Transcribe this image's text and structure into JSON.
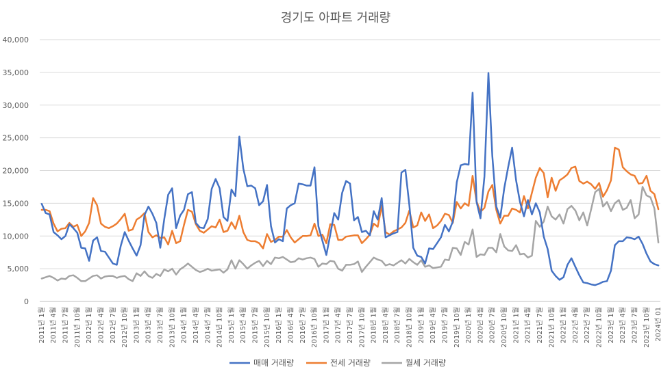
{
  "chart_data": {
    "type": "line",
    "title": "경기도 아파트 거래량",
    "xlabel": "",
    "ylabel": "",
    "ylim": [
      0,
      40000
    ],
    "yticks": [
      0,
      5000,
      10000,
      15000,
      20000,
      25000,
      30000,
      35000,
      40000
    ],
    "ytick_labels": [
      "0",
      "5,000",
      "10,000",
      "15,000",
      "20,000",
      "25,000",
      "30,000",
      "35,000",
      "40,000"
    ],
    "grid": "horizontal",
    "legend": "bottom",
    "xtick_labels": [
      "2011년 1월",
      "2011년 4월",
      "2011년 7월",
      "2011년 10월",
      "2012년 1월",
      "2012년 4월",
      "2012년 7월",
      "2012년 10월",
      "2013년 1월",
      "2013년 4월",
      "2013년 7월",
      "2013년 10월",
      "2014년 1월",
      "2014년 4월",
      "2014년 7월",
      "2014년 10월",
      "2015년 1월",
      "2015년 4월",
      "2015년 7월",
      "2015년 10월",
      "2016년 1월",
      "2016년 4월",
      "2016년 7월",
      "2016년 10월",
      "2017년 1월",
      "2017년 4월",
      "2017년 7월",
      "2017년 10월",
      "2018년 1월",
      "2018년 4월",
      "2018년 7월",
      "2018년 10월",
      "2019년 1월",
      "2019년 4월",
      "2019년 7월",
      "2019년 10월",
      "2020년 1월",
      "2020년 4월",
      "2020년 7월",
      "2020년 10월",
      "2021년 1월",
      "2021년 4월",
      "2021년 7월",
      "2021년 10월",
      "2022년 1월",
      "2022년 4월",
      "2022년 7월",
      "2022년 10월",
      "2023년 1월",
      "2023년 4월",
      "2023년 7월",
      "2023년 10월",
      "2024년 01"
    ],
    "series": [
      {
        "name": "매매 거래량",
        "color": "#4472C4",
        "values": [
          14900,
          13500,
          13300,
          10600,
          10100,
          9500,
          10000,
          11800,
          11200,
          10500,
          8200,
          8100,
          6200,
          9300,
          9800,
          7700,
          7600,
          6700,
          5800,
          5600,
          8500,
          10600,
          9300,
          8100,
          7000,
          8600,
          13200,
          14500,
          13400,
          12000,
          8200,
          12600,
          16300,
          17300,
          11200,
          13100,
          14000,
          16400,
          16700,
          12000,
          11300,
          11200,
          12600,
          17200,
          18700,
          17300,
          12900,
          12300,
          17100,
          16100,
          25200,
          20300,
          17600,
          17700,
          17300,
          14700,
          15300,
          17800,
          11500,
          9000,
          9500,
          9200,
          14200,
          14700,
          15000,
          18000,
          17900,
          17700,
          17700,
          20500,
          11500,
          9300,
          7100,
          10200,
          13500,
          12500,
          16600,
          18400,
          18000,
          12400,
          12900,
          10600,
          10800,
          10100,
          13800,
          12500,
          15800,
          9800,
          10100,
          10400,
          10600,
          19700,
          20100,
          14700,
          8200,
          7000,
          6800,
          5800,
          8100,
          8000,
          8900,
          9800,
          11700,
          10700,
          12200,
          18200,
          20800,
          21000,
          20900,
          31900,
          15200,
          12700,
          19100,
          34900,
          22200,
          14500,
          12800,
          17300,
          20500,
          23500,
          18500,
          15200,
          13000,
          15500,
          13300,
          15000,
          13600,
          9900,
          8000,
          4700,
          3900,
          3300,
          3700,
          5600,
          6600,
          5300,
          4000,
          2900,
          2800,
          2600,
          2500,
          2700,
          3000,
          3100,
          4700,
          8600,
          9200,
          9200,
          9800,
          9700,
          9500,
          9900,
          8800,
          7300,
          6100,
          5700,
          5500
        ]
      },
      {
        "name": "전세 거래량",
        "color": "#ED7D31",
        "values": [
          14000,
          14000,
          13800,
          11900,
          10700,
          11100,
          11200,
          12000,
          11400,
          11700,
          10000,
          10700,
          12000,
          15800,
          14700,
          11900,
          11400,
          11200,
          11500,
          11900,
          12600,
          13400,
          10800,
          11000,
          12500,
          12900,
          13500,
          10600,
          9800,
          10100,
          9700,
          9800,
          8700,
          10800,
          8900,
          9200,
          11700,
          14000,
          13700,
          11800,
          10800,
          10500,
          11000,
          11500,
          11300,
          12500,
          10600,
          10800,
          12100,
          11100,
          13100,
          10600,
          9400,
          9200,
          9200,
          8900,
          8100,
          10300,
          9100,
          9400,
          9900,
          9900,
          10900,
          9800,
          9000,
          9500,
          10000,
          10000,
          10100,
          11900,
          10000,
          10200,
          8900,
          11800,
          11700,
          9400,
          9400,
          9900,
          10000,
          10100,
          10100,
          8900,
          9500,
          10200,
          11900,
          11400,
          14600,
          10600,
          10200,
          10700,
          11000,
          11300,
          12000,
          13900,
          11300,
          11600,
          13600,
          12300,
          13300,
          11200,
          11600,
          12300,
          13400,
          13200,
          12000,
          15200,
          14200,
          15000,
          14600,
          19200,
          15300,
          13700,
          14300,
          16800,
          17800,
          14000,
          11900,
          13100,
          13100,
          14200,
          14000,
          13600,
          16100,
          14200,
          16600,
          18900,
          20400,
          19600,
          15900,
          18900,
          16900,
          18500,
          18900,
          19400,
          20400,
          20600,
          18400,
          18000,
          18300,
          17900,
          17200,
          18100,
          16000,
          17000,
          18500,
          23500,
          23200,
          20500,
          19900,
          19400,
          19200,
          18000,
          18100,
          19200,
          16900,
          16400,
          14100
        ]
      },
      {
        "name": "월세 거래량",
        "color": "#A5A5A5",
        "values": [
          3500,
          3700,
          3900,
          3600,
          3200,
          3500,
          3400,
          3900,
          4000,
          3600,
          3100,
          3100,
          3500,
          3900,
          4000,
          3500,
          3800,
          3900,
          3900,
          3600,
          3800,
          3900,
          3400,
          3100,
          4300,
          3900,
          4600,
          3900,
          3600,
          4200,
          3900,
          4900,
          4600,
          5000,
          4100,
          4900,
          5300,
          5800,
          5300,
          4800,
          4500,
          4700,
          5000,
          4700,
          4800,
          4900,
          4400,
          4900,
          6300,
          5000,
          6300,
          5700,
          5000,
          5500,
          5900,
          6200,
          5400,
          6200,
          5700,
          6700,
          6600,
          6800,
          6400,
          6000,
          6100,
          6600,
          6400,
          6600,
          6700,
          6500,
          5300,
          5800,
          5700,
          6200,
          6100,
          5000,
          4700,
          5600,
          5600,
          5700,
          6100,
          4500,
          5300,
          6000,
          6700,
          6400,
          6200,
          5500,
          5700,
          5500,
          5900,
          6300,
          5800,
          6500,
          6000,
          5600,
          6300,
          5300,
          5500,
          5100,
          5200,
          5300,
          6400,
          6300,
          8200,
          8100,
          7100,
          9100,
          8700,
          11000,
          6800,
          7200,
          7100,
          8200,
          8200,
          7500,
          10300,
          8400,
          7800,
          7700,
          8600,
          7200,
          7300,
          6700,
          7000,
          12300,
          11400,
          12200,
          14500,
          13000,
          12500,
          13300,
          11900,
          14100,
          14600,
          13900,
          12400,
          13600,
          11600,
          14100,
          16700,
          17200,
          14500,
          15200,
          13800,
          15000,
          15500,
          14000,
          14300,
          15500,
          12700,
          13300,
          17500,
          16200,
          15900,
          14200,
          9000
        ]
      }
    ]
  }
}
